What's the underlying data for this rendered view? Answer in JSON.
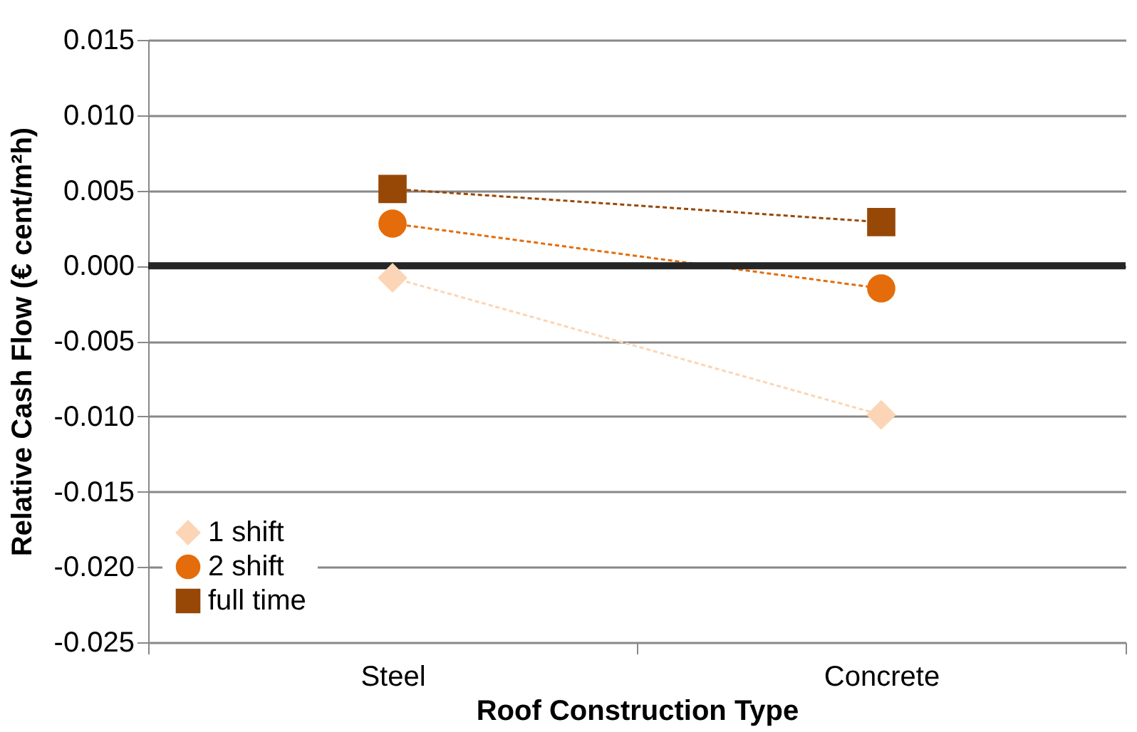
{
  "chart_data": {
    "type": "line",
    "xlabel": "Roof Construction Type",
    "ylabel": "Relative Cash Flow (€ cent/m²h)",
    "categories": [
      "Steel",
      "Concrete"
    ],
    "series": [
      {
        "name": "1 shift",
        "color": "#fbd5b5",
        "marker": "diamond",
        "line_style": "dashed",
        "values": [
          -0.0008,
          -0.0099
        ]
      },
      {
        "name": "2 shift",
        "color": "#e46c0a",
        "marker": "circle",
        "line_style": "dashed",
        "values": [
          0.0028,
          -0.0015
        ]
      },
      {
        "name": "full time",
        "color": "#974706",
        "marker": "square",
        "line_style": "dashed",
        "values": [
          0.0051,
          0.0029
        ]
      }
    ],
    "ylim": [
      -0.025,
      0.015
    ],
    "yticks": [
      {
        "value": -0.025,
        "label": "-0.025"
      },
      {
        "value": -0.02,
        "label": "-0.020"
      },
      {
        "value": -0.015,
        "label": "-0.015"
      },
      {
        "value": -0.01,
        "label": "-0.010"
      },
      {
        "value": -0.005,
        "label": "-0.005"
      },
      {
        "value": 0,
        "label": "0.000"
      },
      {
        "value": 0.005,
        "label": "0.005"
      },
      {
        "value": 0.01,
        "label": "0.010"
      },
      {
        "value": 0.015,
        "label": "0.015"
      }
    ],
    "ref_lines": [
      {
        "axis": "y",
        "value": 0,
        "color": "#262626"
      }
    ],
    "grid": "y",
    "legend": "bottom left"
  }
}
